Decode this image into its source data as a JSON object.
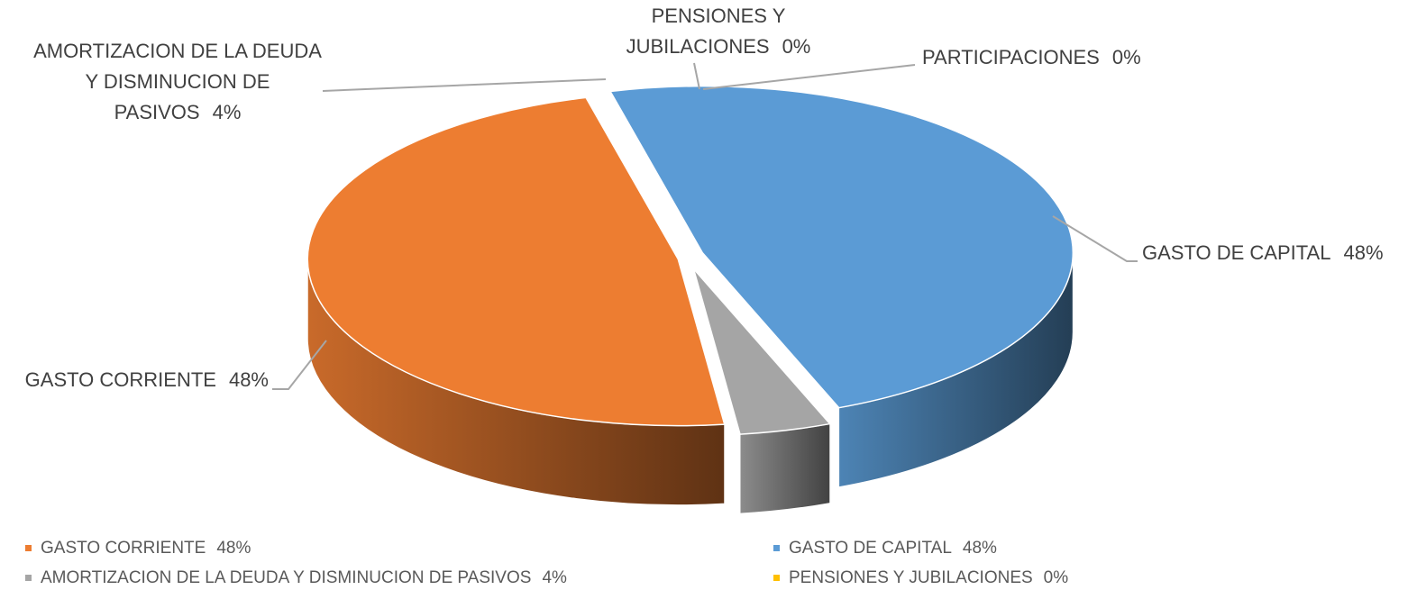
{
  "chart_data": {
    "type": "pie3d",
    "categories": [
      "GASTO CORRIENTE",
      "GASTO DE CAPITAL",
      "AMORTIZACION DE LA DEUDA Y DISMINUCION DE PASIVOS",
      "PENSIONES Y JUBILACIONES",
      "PARTICIPACIONES"
    ],
    "values": [
      48,
      48,
      4,
      0,
      0
    ],
    "value_labels": [
      "48%",
      "48%",
      "4%",
      "0%",
      "0%"
    ],
    "colors": [
      "#ed7d31",
      "#5b9bd5",
      "#a5a5a5",
      "#ffc000",
      "#4472c4"
    ],
    "legend": "bottom"
  }
}
